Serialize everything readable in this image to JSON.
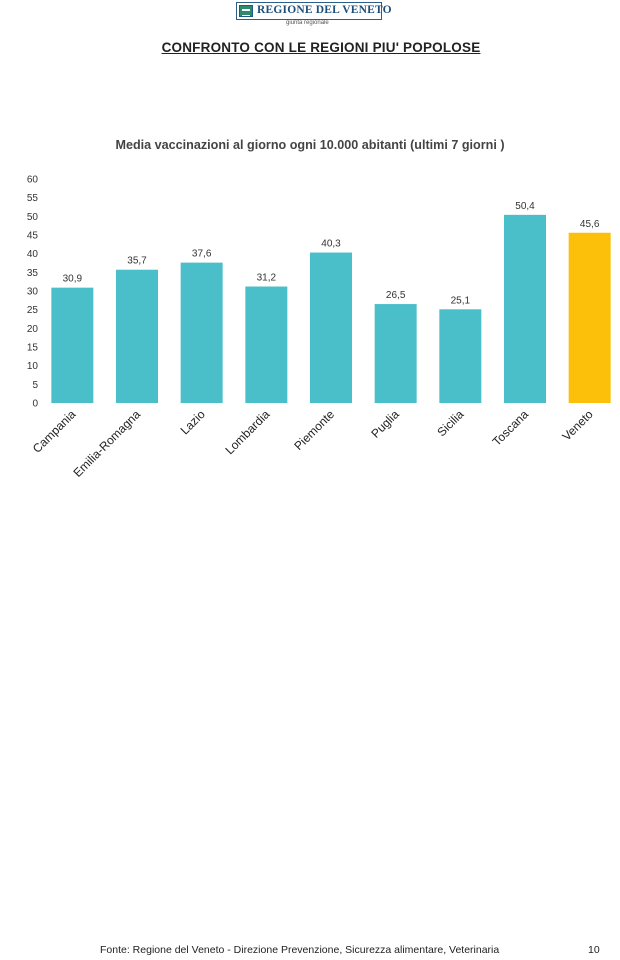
{
  "header": {
    "logo_text": "REGIONE DEL VENETO",
    "logo_subtitle": "giunta regionale",
    "title": "CONFRONTO CON LE REGIONI PIU' POPOLOSE"
  },
  "chart_data": {
    "type": "bar",
    "title": "Media vaccinazioni al giorno ogni 10.000 abitanti (ultimi 7 giorni )",
    "categories": [
      "Campania",
      "Emilia-Romagna",
      "Lazio",
      "Lombardia",
      "Piemonte",
      "Puglia",
      "Sicilia",
      "Toscana",
      "Veneto"
    ],
    "values": [
      30.9,
      35.7,
      37.6,
      31.2,
      40.3,
      26.5,
      25.1,
      50.4,
      45.6
    ],
    "value_labels": [
      "30,9",
      "35,7",
      "37,6",
      "31,2",
      "40,3",
      "26,5",
      "25,1",
      "50,4",
      "45,6"
    ],
    "ylim": [
      0,
      60
    ],
    "yticks": [
      0,
      5,
      10,
      15,
      20,
      25,
      30,
      35,
      40,
      45,
      50,
      55,
      60
    ],
    "grid": false,
    "legend": "none",
    "colors": {
      "default": "#4bbfc9",
      "highlight": "#fcbf0a",
      "highlight_category": "Veneto"
    }
  },
  "footer": {
    "source": "Fonte: Regione del Veneto - Direzione Prevenzione, Sicurezza alimentare, Veterinaria",
    "page_number": "10"
  }
}
